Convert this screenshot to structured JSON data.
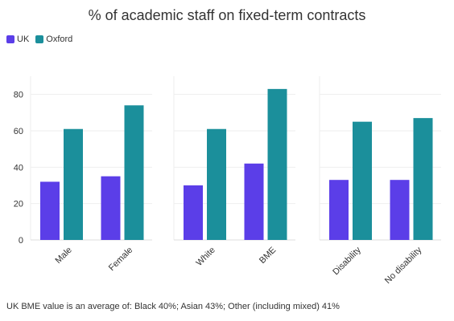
{
  "chart_data": {
    "type": "bar",
    "title": "% of academic staff on fixed-term contracts",
    "colors": {
      "UK": "#5b3ee8",
      "Oxford": "#1b8f9b"
    },
    "legend": {
      "placement": "top-left",
      "items": [
        {
          "name": "UK",
          "color": "#5b3ee8"
        },
        {
          "name": "Oxford",
          "color": "#1b8f9b"
        }
      ]
    },
    "ylim": [
      0,
      90
    ],
    "yticks": [
      0,
      20,
      40,
      60,
      80
    ],
    "grid": true,
    "panels": [
      {
        "categories": [
          "Male",
          "Female"
        ],
        "series": [
          {
            "name": "UK",
            "values": [
              32,
              35
            ]
          },
          {
            "name": "Oxford",
            "values": [
              61,
              74
            ]
          }
        ]
      },
      {
        "categories": [
          "White",
          "BME"
        ],
        "series": [
          {
            "name": "UK",
            "values": [
              30,
              42
            ]
          },
          {
            "name": "Oxford",
            "values": [
              61,
              83
            ]
          }
        ]
      },
      {
        "categories": [
          "Disability",
          "No disability"
        ],
        "series": [
          {
            "name": "UK",
            "values": [
              33,
              33
            ]
          },
          {
            "name": "Oxford",
            "values": [
              65,
              67
            ]
          }
        ]
      }
    ],
    "footnote": "UK BME value is an average of: Black 40%; Asian 43%; Other (including mixed) 41%"
  }
}
